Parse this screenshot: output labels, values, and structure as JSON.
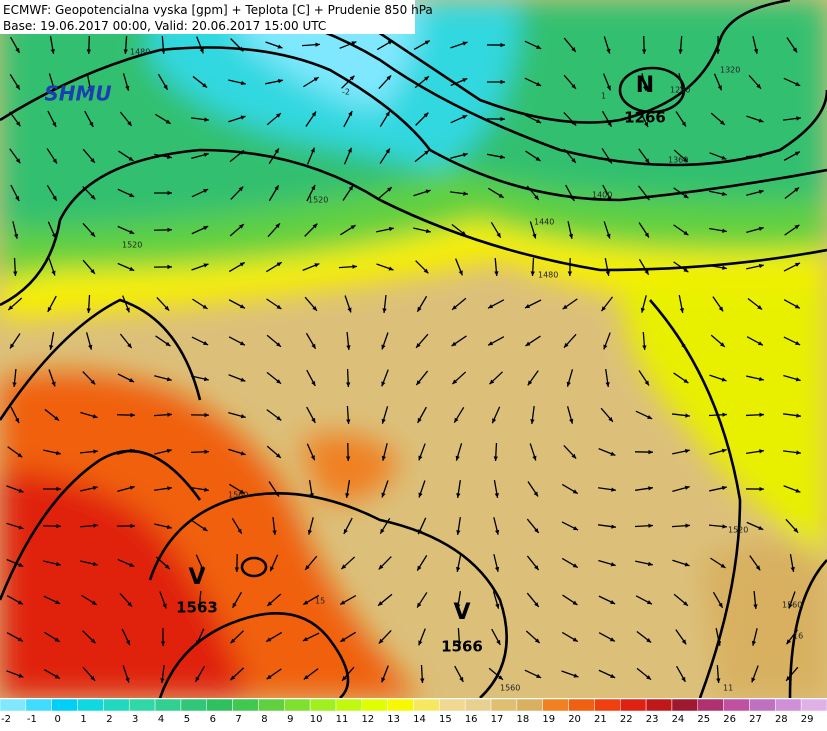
{
  "header": {
    "title": "ECMWF: Geopotencialna vyska [gpm] + Teplota [C] + Prudenie 850 hPa",
    "subtitle": "Base: 19.06.2017 00:00, Valid: 20.06.2017 15:00 UTC"
  },
  "logo": "SHMU",
  "map_labels": {
    "low_letter": "N",
    "low_value": "1266",
    "high1_letter": "V",
    "high1_value": "1563",
    "high2_letter": "V",
    "high2_value": "1566",
    "contours": [
      "1480",
      "1520",
      "1560",
      "1440",
      "1400",
      "1360",
      "1320",
      "1280",
      "1480",
      "1520",
      "1560",
      "1520",
      "1560"
    ],
    "temps": [
      "-2",
      "1",
      "15",
      "16",
      "11"
    ]
  },
  "colorbar": {
    "labels": [
      -2,
      -1,
      0,
      1,
      2,
      3,
      4,
      5,
      6,
      7,
      8,
      9,
      10,
      11,
      12,
      13,
      14,
      15,
      16,
      17,
      18,
      19,
      20,
      21,
      22,
      23,
      24,
      25,
      26,
      27,
      28,
      29
    ],
    "colors": [
      "#7fe8ff",
      "#40dcff",
      "#00d0f8",
      "#10d8e0",
      "#20d8c0",
      "#30d8a8",
      "#30d090",
      "#30c878",
      "#30c060",
      "#40c850",
      "#60d040",
      "#80e030",
      "#a0f020",
      "#c0f810",
      "#e0ff00",
      "#f8f800",
      "#f8e860",
      "#f0d890",
      "#e8d090",
      "#e0c070",
      "#d8b060",
      "#f08020",
      "#f06010",
      "#f04010",
      "#e02010",
      "#c01818",
      "#a01830",
      "#b03070",
      "#c050a0",
      "#c070c0",
      "#d090d8",
      "#e0b0e8"
    ]
  }
}
